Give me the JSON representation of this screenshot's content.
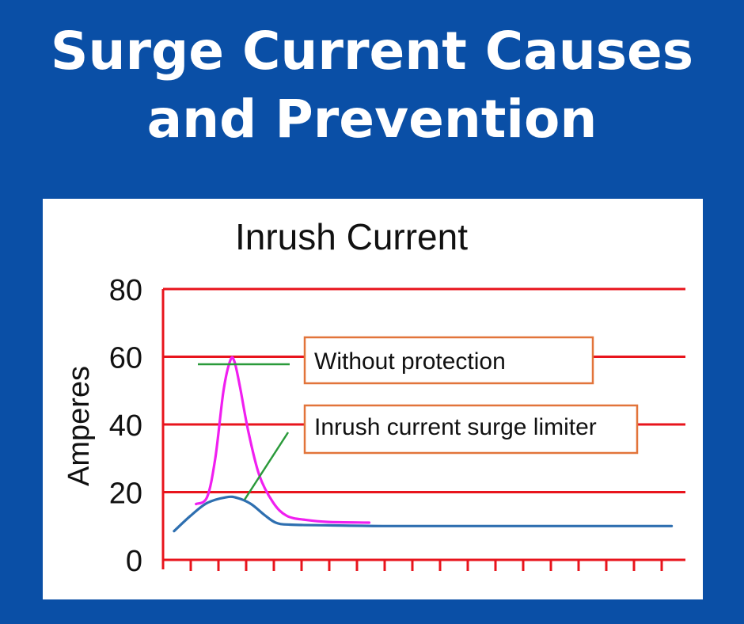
{
  "banner": {
    "title_line1": "Surge Current Causes",
    "title_line2": "and Prevention"
  },
  "colors": {
    "background": "#0a4fa6",
    "grid": "#e8141c",
    "without_protection": "#f01ff0",
    "surge_limiter": "#2e6fb0",
    "callout_border": "#e2743a",
    "leader": "#2a9a3a"
  },
  "chart_data": {
    "type": "line",
    "title": "Inrush Current",
    "ylabel": "Amperes",
    "xlabel": "",
    "ylim": [
      0,
      80
    ],
    "xlim": [
      0,
      19
    ],
    "yticks": [
      0,
      20,
      40,
      60,
      80
    ],
    "grid": true,
    "annotations": [
      "Without protection",
      "Inrush current surge limiter"
    ],
    "series": [
      {
        "name": "Without protection",
        "color": "#f01ff0",
        "points": [
          [
            1.2,
            16.5
          ],
          [
            1.6,
            18.5
          ],
          [
            1.9,
            30
          ],
          [
            2.2,
            50
          ],
          [
            2.45,
            59
          ],
          [
            2.6,
            58.5
          ],
          [
            2.8,
            51
          ],
          [
            3.1,
            38
          ],
          [
            3.5,
            25
          ],
          [
            4.0,
            17
          ],
          [
            4.5,
            13
          ],
          [
            5.2,
            11.8
          ],
          [
            6.0,
            11.2
          ],
          [
            7.5,
            11.0
          ]
        ]
      },
      {
        "name": "Inrush current surge limiter",
        "color": "#2e6fb0",
        "points": [
          [
            0.4,
            8.5
          ],
          [
            1.0,
            13
          ],
          [
            1.6,
            16.8
          ],
          [
            2.3,
            18.5
          ],
          [
            2.7,
            18.3
          ],
          [
            3.2,
            16.5
          ],
          [
            3.7,
            13.2
          ],
          [
            4.1,
            11
          ],
          [
            4.6,
            10.4
          ],
          [
            6.0,
            10.2
          ],
          [
            8.0,
            10.0
          ],
          [
            12.0,
            10.0
          ],
          [
            18.5,
            10.0
          ]
        ]
      }
    ]
  }
}
